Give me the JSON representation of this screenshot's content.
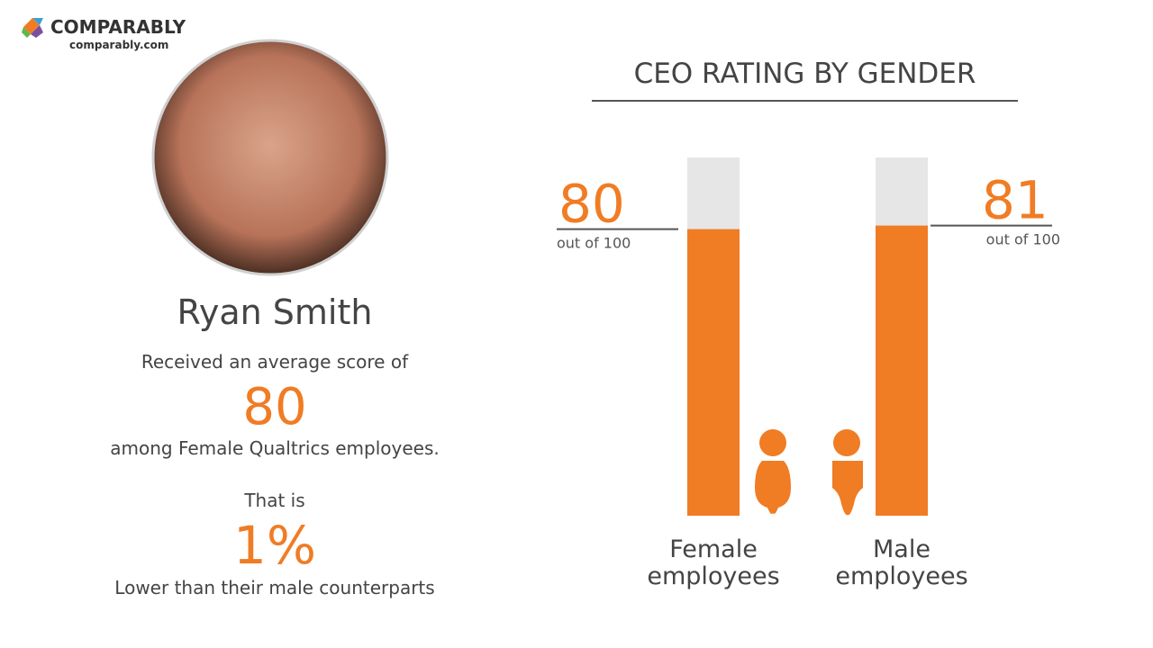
{
  "logo": {
    "name": "COMPARABLY",
    "url": "comparably.com"
  },
  "profile": {
    "name": "Ryan Smith",
    "intro": "Received an average score of",
    "score": 80,
    "group": "among Female Qualtrics employees.",
    "comparison_intro": "That is",
    "difference": "1%",
    "comparison": "Lower than their male counterparts"
  },
  "chart_data": {
    "type": "bar",
    "title": "CEO RATING BY GENDER",
    "categories": [
      "Female employees",
      "Male employees"
    ],
    "values": [
      80,
      81
    ],
    "value_note": "out of 100",
    "color": "#f07c24",
    "ylim": [
      0,
      100
    ]
  }
}
